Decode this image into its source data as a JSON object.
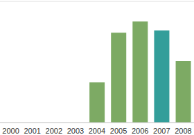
{
  "chart_data": {
    "type": "bar",
    "categories": [
      "2000",
      "2001",
      "2002",
      "2003",
      "2004",
      "2005",
      "2006",
      "2007",
      "2008"
    ],
    "values": [
      0,
      0,
      0,
      0,
      1.66,
      3.71,
      4.17,
      3.8,
      2.54
    ],
    "colors": [
      "#7daa64",
      "#7daa64",
      "#7daa64",
      "#7daa64",
      "#7daa64",
      "#7daa64",
      "#7daa64",
      "#339e9a",
      "#7daa64"
    ],
    "ylim": [
      0,
      5
    ],
    "yticks": [
      0,
      1,
      2,
      3,
      4,
      5
    ],
    "grid": true,
    "tick_labels": "x"
  }
}
